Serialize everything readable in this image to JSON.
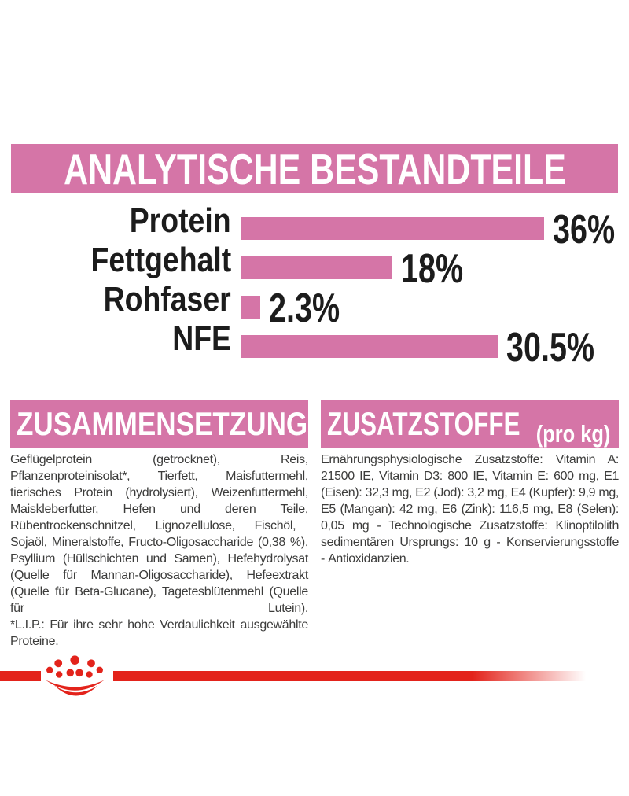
{
  "colors": {
    "pink": "#d575a7",
    "red": "#e3231b",
    "heading_text": "#ffffff",
    "chart_text": "#1c1c1c",
    "body_text": "#3c3c3b"
  },
  "banner": {
    "title": "ANALYTISCHE BESTANDTEILE"
  },
  "chart_data": {
    "type": "bar",
    "orientation": "horizontal",
    "title": "ANALYTISCHE BESTANDTEILE",
    "categories": [
      "Protein",
      "Fettgehalt",
      "Rohfaser",
      "NFE"
    ],
    "values": [
      36,
      18,
      2.3,
      30.5
    ],
    "value_labels": [
      "36%",
      "18%",
      "2.3%",
      "30.5%"
    ],
    "unit": "%",
    "xlim": [
      0,
      36
    ],
    "bar_color": "#d575a7",
    "grid": false,
    "legend": false
  },
  "sections": {
    "composition": {
      "title": "ZUSAMMENSETZUNG",
      "body": "Geflügelprotein (getrocknet), Reis, Pflanzenproteinisolat*, Tierfett, Maisfuttermehl, tierisches Protein (hydrolysiert), Weizenfuttermehl, Maiskleberfutter, Hefen und deren Teile, Rübentrockenschnitzel, Lignozellulose, Fischöl, Sojaöl, Mineralstoffe, Fructo-Oligosaccharide (0,38 %), Psyllium (Hüllschichten und Samen), Hefehydrolysat (Quelle für Mannan-Oligosaccharide), Hefeextrakt (Quelle für Beta-Glucane), Tagetesblütenmehl (Quelle für Lutein).",
      "footnote": "*L.I.P.: Für ihre sehr hohe Verdaulichkeit ausgewählte Proteine."
    },
    "additives": {
      "title": "ZUSATZSTOFFE",
      "subtitle": "(pro kg)",
      "body": "Ernährungsphysiologische Zusatzstoffe: Vitamin A: 21500 IE, Vitamin D3: 800 IE, Vitamin E: 600 mg, E1 (Eisen): 32,3 mg, E2 (Jod): 3,2 mg, E4 (Kupfer): 9,9 mg, E5 (Mangan): 42 mg, E6 (Zink): 116,5 mg, E8 (Selen): 0,05 mg - Technologische Zusatzstoffe: Klinoptilolith sedimentären Ursprungs: 10 g - Konservierungsstoffe -⁠ Antioxidanzien."
    }
  },
  "footer": {
    "brand_logo": "royal-canin-crown"
  }
}
